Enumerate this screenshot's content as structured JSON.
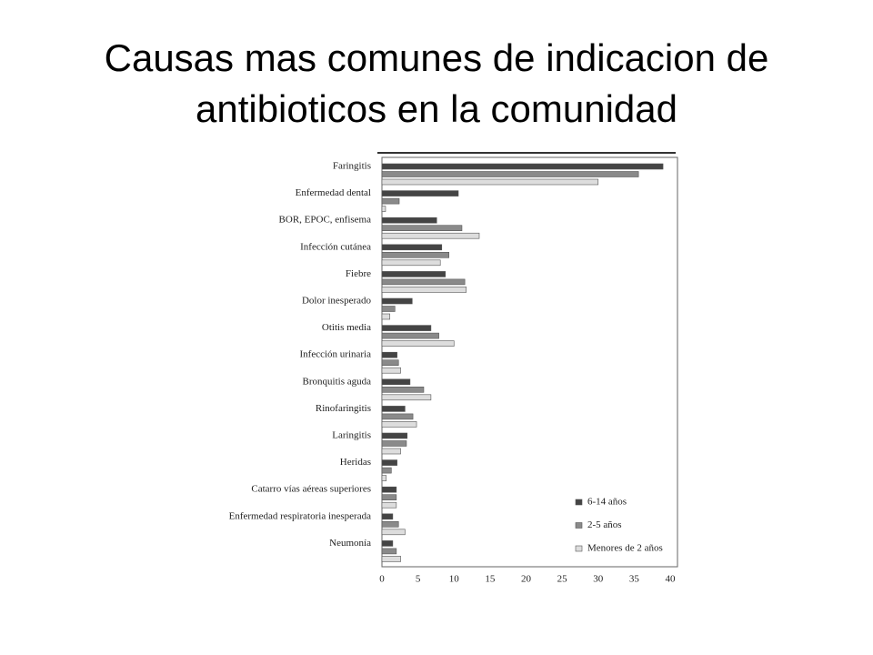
{
  "chart_data": {
    "type": "barh",
    "title": "Causas mas comunes de indicacion de antibioticos en la comunidad",
    "categories": [
      "Faringitis",
      "Enfermedad dental",
      "BOR, EPOC, enfisema",
      "Infección cutánea",
      "Fiebre",
      "Dolor inesperado",
      "Otitis media",
      "Infección urinaria",
      "Bronquitis aguda",
      "Rinofaringitis",
      "Laringitis",
      "Heridas",
      "Catarro vías aéreas superiores",
      "Enfermedad respiratoria inesperada",
      "Neumonía"
    ],
    "series": [
      {
        "name": "6-14 años",
        "color": "#444444",
        "values": [
          39,
          10.6,
          7.6,
          8.3,
          8.8,
          4.2,
          6.8,
          2.1,
          3.9,
          3.2,
          3.5,
          2.1,
          2,
          1.5,
          1.5
        ]
      },
      {
        "name": "2-5 años",
        "color": "#8a8a8a",
        "values": [
          35.6,
          2.4,
          11.1,
          9.3,
          11.5,
          1.8,
          7.9,
          2.3,
          5.8,
          4.3,
          3.4,
          1.3,
          2,
          2.3,
          2
        ]
      },
      {
        "name": "Menores de 2 años",
        "color": "#dddddd",
        "values": [
          30,
          0.5,
          13.5,
          8.1,
          11.7,
          1.1,
          10,
          2.6,
          6.8,
          4.8,
          2.6,
          0.6,
          2,
          3.2,
          2.6
        ]
      }
    ],
    "xlim": [
      0,
      40
    ],
    "xticks": [
      0,
      5,
      10,
      15,
      20,
      25,
      30,
      35,
      40
    ],
    "legend": "lower right"
  }
}
